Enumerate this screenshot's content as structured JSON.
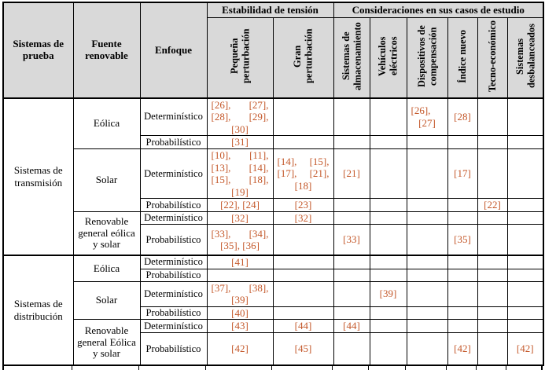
{
  "colors": {
    "citation": "#C4582A",
    "header_bg": "#D9D9D9",
    "border": "#000000"
  },
  "header": {
    "col1": "Sistemas de prueba",
    "col2": "Fuente renovable",
    "col3": "Enfoque",
    "group1": "Estabilidad de tensión",
    "group2": "Consideraciones en sus casos de estudio",
    "rotated": [
      "Pequeña perturbación",
      "Gran perturbación",
      "Sistemas de almacenamiento",
      "Vehículos eléctricos",
      "Dispositivos de compensación",
      "Índice nuevo",
      "Tecno-económico",
      "Sistemas desbalanceados"
    ]
  },
  "groups": [
    {
      "system": "Sistemas de transmisión",
      "sources": [
        {
          "source": "Eólica",
          "rows": [
            {
              "approach": "Determinístico",
              "cells": [
                "[26], [27], [28], [29], [30]",
                "",
                "",
                "",
                "[26], [27]",
                "[28]",
                "",
                ""
              ]
            },
            {
              "approach": "Probabilístico",
              "cells": [
                "[31]",
                "",
                "",
                "",
                "",
                "",
                "",
                ""
              ]
            }
          ]
        },
        {
          "source": "Solar",
          "rows": [
            {
              "approach": "Determinístico",
              "cells": [
                "[10], [11], [13], [14], [15], [18], [19]",
                "[14], [15], [17], [21], [18]",
                "[21]",
                "",
                "",
                "[17]",
                "",
                ""
              ]
            },
            {
              "approach": "Probabilístico",
              "cells": [
                "[22], [24]",
                "[23]",
                "",
                "",
                "",
                "",
                "[22]",
                ""
              ]
            }
          ]
        },
        {
          "source": "Renovable general eólica y solar",
          "rows": [
            {
              "approach": "Determinístico",
              "cells": [
                "[32]",
                "[32]",
                "",
                "",
                "",
                "",
                "",
                ""
              ]
            },
            {
              "approach": "Probabilístico",
              "cells": [
                "[33], [34], [35], [36]",
                "",
                "[33]",
                "",
                "",
                "[35]",
                "",
                ""
              ]
            }
          ]
        }
      ]
    },
    {
      "system": "Sistemas de distribución",
      "sources": [
        {
          "source": "Eólica",
          "rows": [
            {
              "approach": "Determinístico",
              "cells": [
                "[41]",
                "",
                "",
                "",
                "",
                "",
                "",
                ""
              ]
            },
            {
              "approach": "Probabilístico",
              "cells": [
                "",
                "",
                "",
                "",
                "",
                "",
                "",
                ""
              ]
            }
          ]
        },
        {
          "source": "Solar",
          "rows": [
            {
              "approach": "Determinístico",
              "cells": [
                "[37], [38], [39]",
                "",
                "",
                "[39]",
                "",
                "",
                "",
                ""
              ]
            },
            {
              "approach": "Probabilístico",
              "cells": [
                "[40]",
                "",
                "",
                "",
                "",
                "",
                "",
                ""
              ]
            }
          ]
        },
        {
          "source": "Renovable general Eólica y solar",
          "rows": [
            {
              "approach": "Determinístico",
              "cells": [
                "[43]",
                "[44]",
                "[44]",
                "",
                "",
                "",
                "",
                ""
              ]
            },
            {
              "approach": "Probabilístico",
              "cells": [
                "[42]",
                "[45]",
                "",
                "",
                "",
                "[42]",
                "",
                "[42]"
              ]
            }
          ]
        }
      ]
    }
  ]
}
